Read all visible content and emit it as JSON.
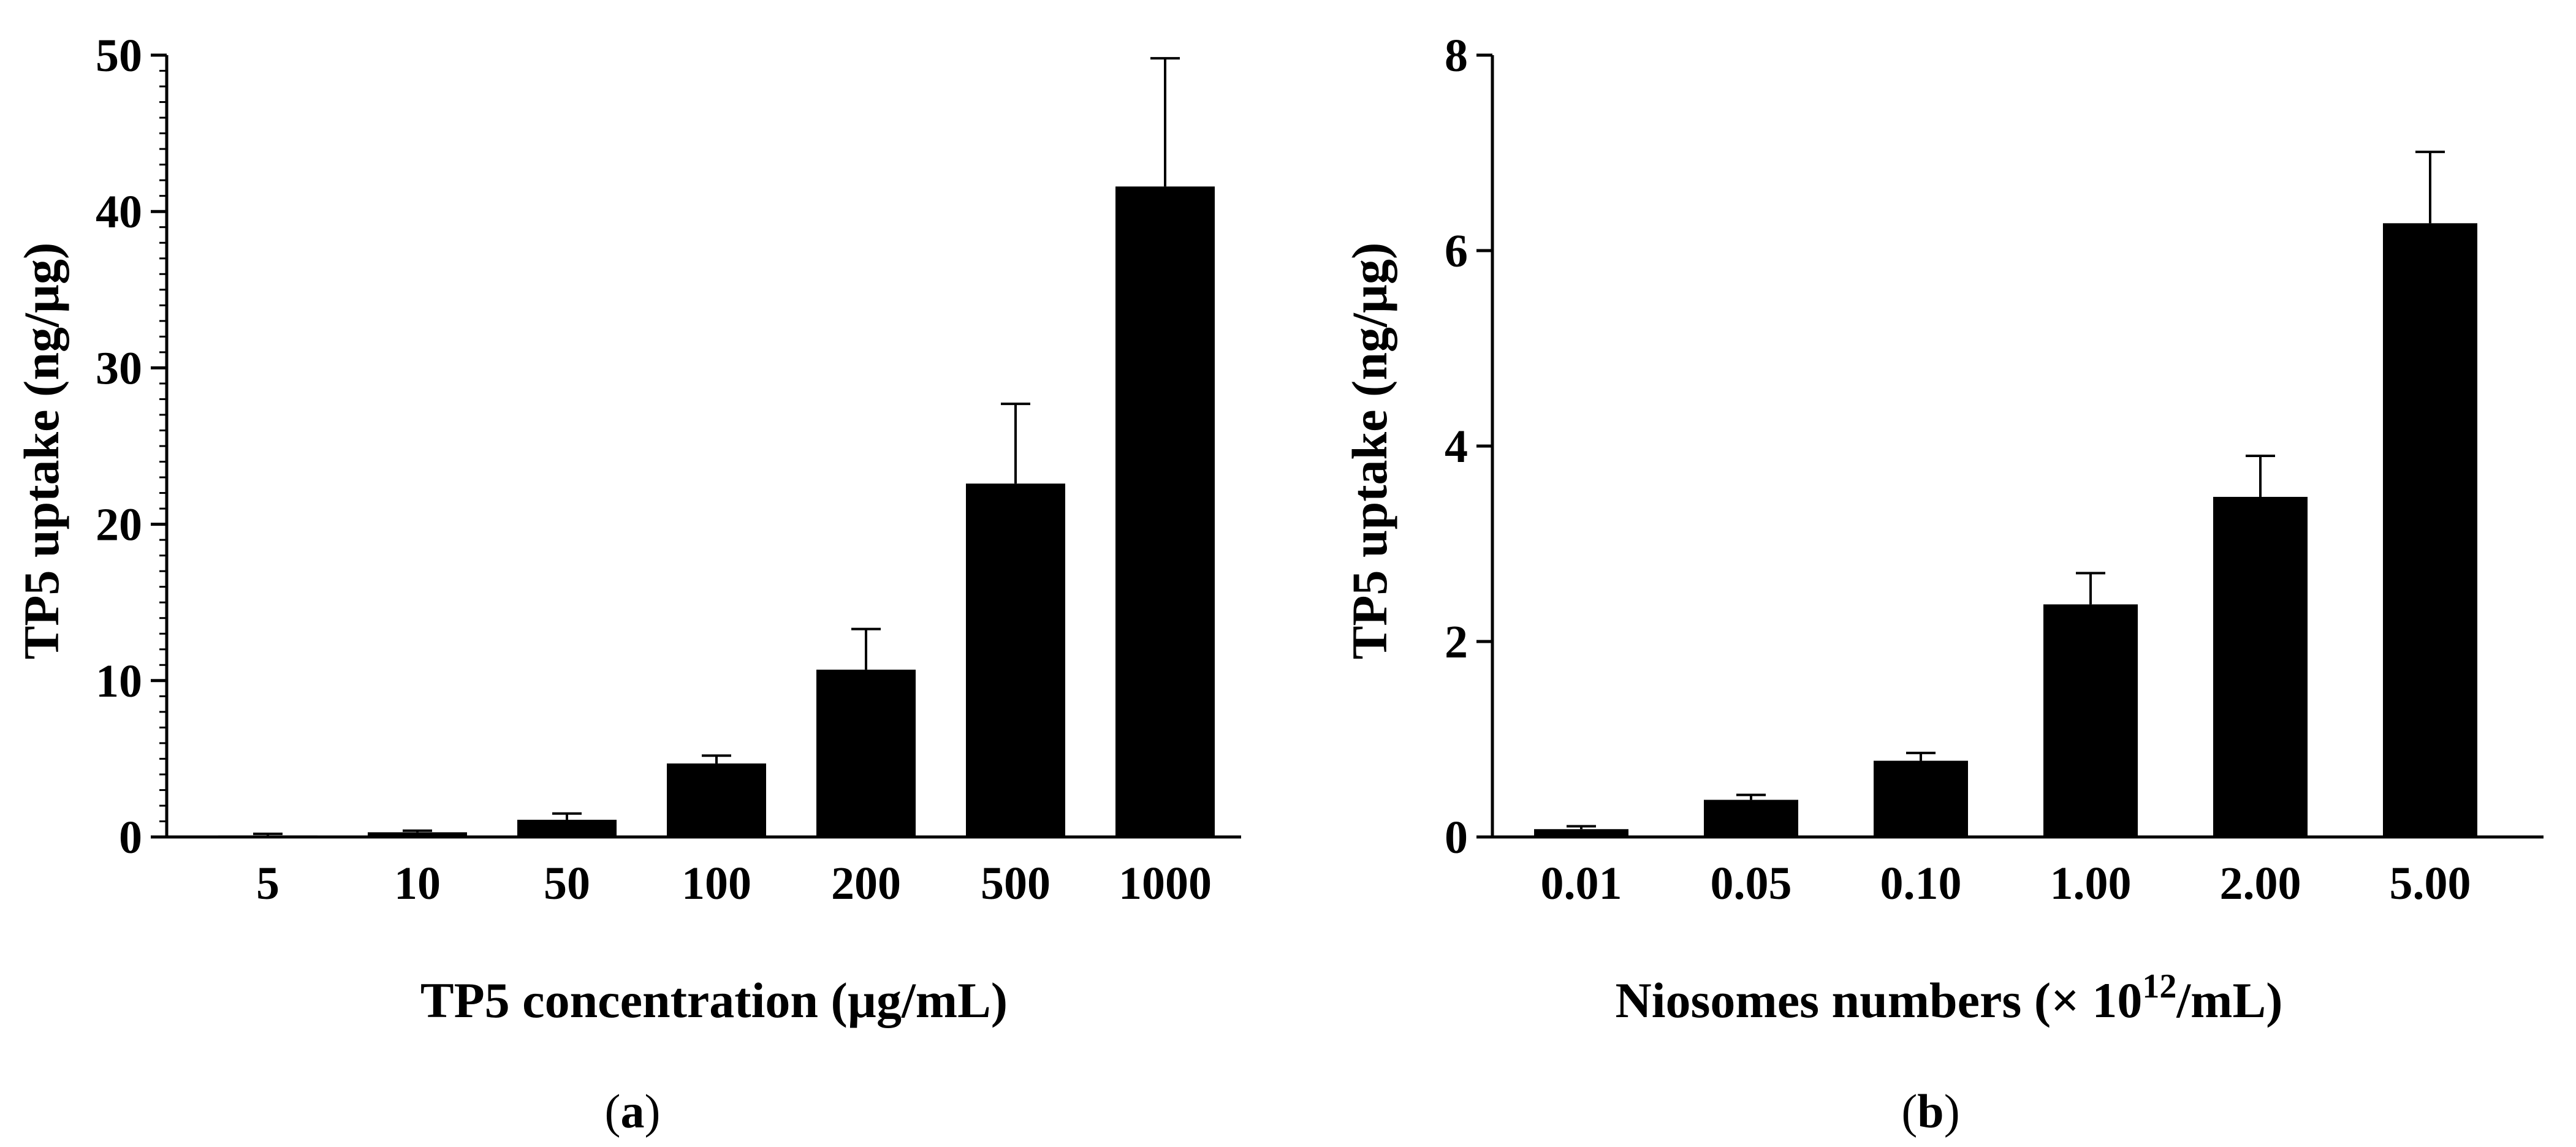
{
  "chart_data": [
    {
      "id": "a",
      "type": "bar",
      "panel_label_parts": [
        "(",
        "a",
        ")"
      ],
      "xlabel": "TP5 concentration (µg/mL)",
      "ylabel": "TP5 uptake (ng/µg)",
      "categories": [
        "5",
        "10",
        "50",
        "100",
        "200",
        "500",
        "1000"
      ],
      "values": [
        0.1,
        0.3,
        1.1,
        4.7,
        10.7,
        22.6,
        41.6
      ],
      "errors": [
        0.1,
        0.1,
        0.4,
        0.5,
        2.6,
        5.1,
        8.2
      ],
      "ylim": [
        0,
        50
      ],
      "yticks": [
        0,
        10,
        20,
        30,
        40,
        50
      ],
      "yticks_text": [
        "0",
        "10",
        "20",
        "30",
        "40",
        "50"
      ],
      "minor_ticks_per_major": 10,
      "grid": false
    },
    {
      "id": "b",
      "type": "bar",
      "panel_label_parts": [
        "(",
        "b",
        ")"
      ],
      "xlabel_prefix": "Niosomes numbers (× 10",
      "xlabel_sup": "12",
      "xlabel_suffix": "/mL)",
      "ylabel": "TP5 uptake (ng/µg)",
      "categories": [
        "0.01",
        "0.05",
        "0.10",
        "1.00",
        "2.00",
        "5.00"
      ],
      "values": [
        0.08,
        0.38,
        0.78,
        2.38,
        3.48,
        6.28
      ],
      "errors": [
        0.03,
        0.05,
        0.08,
        0.32,
        0.42,
        0.73
      ],
      "ylim": [
        0,
        8
      ],
      "yticks": [
        0,
        2,
        4,
        6,
        8
      ],
      "yticks_text": [
        "0",
        "2",
        "4",
        "6",
        "8"
      ],
      "minor_ticks_per_major": 0,
      "grid": false
    }
  ]
}
